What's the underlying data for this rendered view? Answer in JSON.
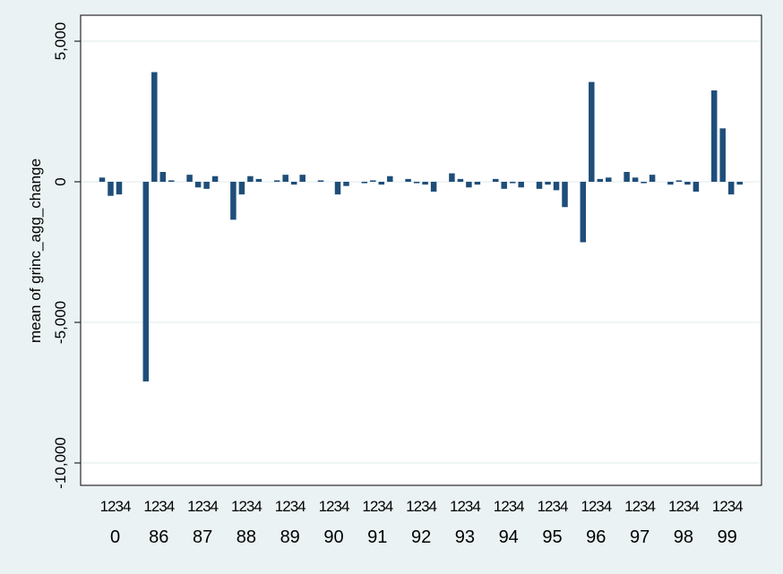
{
  "chart_data": {
    "type": "bar",
    "title": "",
    "xlabel": "",
    "ylabel": "mean of grinc_agg_change",
    "ylim": [
      -10500,
      5500
    ],
    "yticks": [
      5000,
      0,
      -5000,
      -10000
    ],
    "ytick_labels": [
      "5,000",
      "0",
      "-5,000",
      "-10,000"
    ],
    "grid": true,
    "bar_color": "#1f4e79",
    "gridline_color": "#eaf2f3",
    "quarter_labels": [
      "1",
      "2",
      "3",
      "4"
    ],
    "groups": [
      {
        "label": "0",
        "values": [
          150,
          -500,
          -450,
          0
        ]
      },
      {
        "label": "86",
        "values": [
          -7100,
          3900,
          350,
          50
        ]
      },
      {
        "label": "87",
        "values": [
          250,
          -200,
          -250,
          200
        ]
      },
      {
        "label": "88",
        "values": [
          -1350,
          -450,
          200,
          100
        ]
      },
      {
        "label": "89",
        "values": [
          50,
          250,
          -100,
          250
        ]
      },
      {
        "label": "90",
        "values": [
          50,
          0,
          -450,
          -150
        ]
      },
      {
        "label": "91",
        "values": [
          -50,
          50,
          -100,
          200
        ]
      },
      {
        "label": "92",
        "values": [
          100,
          -50,
          -100,
          -350
        ]
      },
      {
        "label": "93",
        "values": [
          300,
          100,
          -200,
          -100
        ]
      },
      {
        "label": "94",
        "values": [
          100,
          -250,
          -50,
          -200
        ]
      },
      {
        "label": "95",
        "values": [
          -250,
          -100,
          -300,
          -900
        ]
      },
      {
        "label": "96",
        "values": [
          -2150,
          3550,
          100,
          150
        ]
      },
      {
        "label": "97",
        "values": [
          350,
          150,
          -50,
          250
        ]
      },
      {
        "label": "98",
        "values": [
          -100,
          50,
          -100,
          -350
        ]
      },
      {
        "label": "99",
        "values": [
          3250,
          1900,
          -450,
          -100
        ]
      }
    ]
  }
}
